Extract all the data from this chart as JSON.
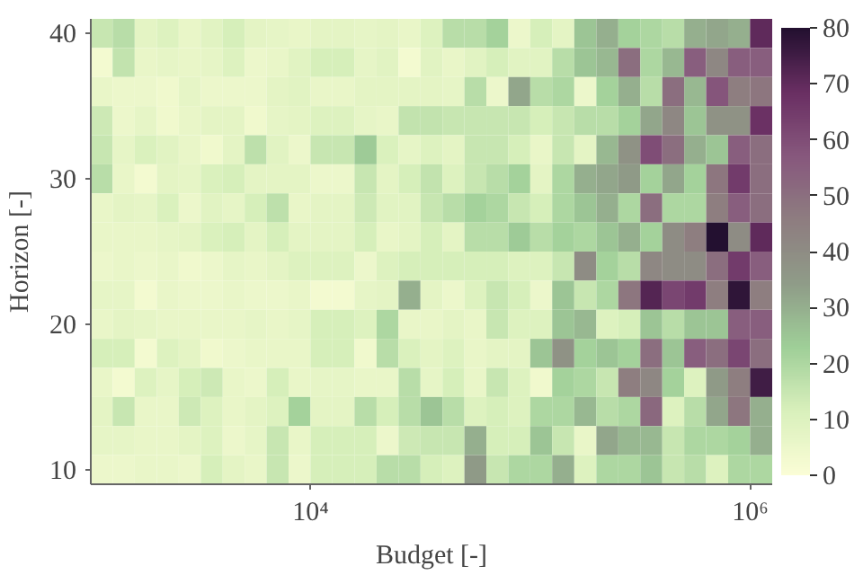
{
  "chart_data": {
    "type": "heatmap",
    "xlabel": "Budget [-]",
    "ylabel": "Horizon [-]",
    "log": "x",
    "grid": false,
    "xlim": [
      1000,
      1260000
    ],
    "xticks": [
      {
        "value": 10000,
        "label": "10⁴"
      },
      {
        "value": 1000000,
        "label": "10⁶"
      }
    ],
    "ylim": [
      9,
      41
    ],
    "yticks": [
      10,
      20,
      30,
      40
    ],
    "clim": [
      0,
      80
    ],
    "cticks": [
      0,
      10,
      20,
      30,
      40,
      50,
      60,
      70,
      80
    ],
    "colors": [
      "#fbfdd6",
      "#d9f0bc",
      "#9fcf98",
      "#8f9c88",
      "#8e7d80",
      "#87587d",
      "#6a2f63",
      "#231030"
    ],
    "x": [
      1120,
      1410,
      1780,
      2240,
      2820,
      3550,
      4470,
      5620,
      7080,
      8910,
      11200,
      14100,
      17800,
      22400,
      28200,
      35500,
      44700,
      56200,
      70800,
      89100,
      112000,
      141000,
      178000,
      224000,
      282000,
      355000,
      447000,
      562000,
      708000,
      891000,
      1120000
    ],
    "y": [
      40,
      38,
      36,
      34,
      32,
      30,
      28,
      26,
      24,
      22,
      20,
      18,
      16,
      14,
      12,
      10
    ],
    "cells": [
      [
        15,
        18,
        8,
        10,
        6,
        9,
        12,
        8,
        7,
        6,
        8,
        8,
        7,
        8,
        6,
        10,
        18,
        18,
        22,
        5,
        12,
        8,
        25,
        30,
        22,
        20,
        18,
        30,
        32,
        30,
        70
      ],
      [
        3,
        16,
        6,
        7,
        6,
        7,
        10,
        5,
        6,
        9,
        12,
        12,
        7,
        9,
        3,
        9,
        6,
        9,
        12,
        9,
        9,
        18,
        25,
        28,
        50,
        20,
        28,
        55,
        42,
        55,
        55
      ],
      [
        6,
        5,
        5,
        4,
        7,
        5,
        5,
        5,
        8,
        9,
        6,
        6,
        8,
        8,
        8,
        8,
        7,
        18,
        5,
        32,
        18,
        20,
        5,
        22,
        30,
        18,
        50,
        28,
        58,
        45,
        48
      ],
      [
        14,
        5,
        7,
        4,
        6,
        8,
        8,
        4,
        7,
        8,
        10,
        10,
        7,
        6,
        16,
        16,
        15,
        15,
        15,
        15,
        12,
        15,
        18,
        18,
        22,
        32,
        42,
        25,
        38,
        38,
        68
      ],
      [
        15,
        7,
        11,
        9,
        6,
        4,
        8,
        17,
        9,
        5,
        15,
        15,
        24,
        11,
        7,
        10,
        8,
        15,
        15,
        12,
        6,
        15,
        8,
        28,
        38,
        60,
        50,
        30,
        25,
        55,
        50
      ],
      [
        18,
        6,
        3,
        8,
        7,
        11,
        12,
        8,
        8,
        8,
        5,
        5,
        15,
        8,
        12,
        16,
        10,
        15,
        18,
        22,
        8,
        20,
        30,
        32,
        35,
        22,
        32,
        22,
        48,
        65,
        50
      ],
      [
        6,
        8,
        7,
        11,
        5,
        9,
        7,
        12,
        17,
        6,
        8,
        8,
        14,
        9,
        9,
        15,
        18,
        22,
        20,
        15,
        12,
        20,
        25,
        30,
        20,
        50,
        20,
        20,
        45,
        55,
        50
      ],
      [
        6,
        6,
        6,
        7,
        8,
        11,
        12,
        8,
        12,
        8,
        8,
        8,
        12,
        6,
        8,
        12,
        8,
        18,
        18,
        24,
        18,
        22,
        20,
        25,
        30,
        22,
        40,
        45,
        80,
        40,
        70
      ],
      [
        5,
        6,
        5,
        6,
        4,
        5,
        7,
        6,
        8,
        10,
        10,
        10,
        5,
        10,
        12,
        12,
        12,
        12,
        12,
        10,
        10,
        15,
        40,
        22,
        18,
        42,
        40,
        40,
        50,
        65,
        55
      ],
      [
        7,
        7,
        3,
        6,
        5,
        5,
        6,
        5,
        5,
        6,
        3,
        3,
        7,
        8,
        30,
        8,
        5,
        10,
        15,
        12,
        5,
        25,
        15,
        20,
        48,
        72,
        62,
        65,
        45,
        78,
        45
      ],
      [
        6,
        8,
        7,
        6,
        6,
        6,
        6,
        7,
        6,
        7,
        12,
        12,
        10,
        20,
        6,
        6,
        8,
        6,
        15,
        10,
        10,
        25,
        28,
        10,
        12,
        25,
        18,
        25,
        25,
        55,
        55
      ],
      [
        12,
        12,
        3,
        10,
        8,
        4,
        5,
        6,
        6,
        6,
        12,
        12,
        4,
        18,
        11,
        8,
        10,
        6,
        8,
        8,
        25,
        38,
        22,
        25,
        22,
        50,
        25,
        55,
        50,
        62,
        50
      ],
      [
        6,
        3,
        10,
        7,
        12,
        14,
        6,
        5,
        12,
        6,
        7,
        7,
        6,
        6,
        18,
        7,
        12,
        6,
        15,
        10,
        4,
        22,
        20,
        15,
        45,
        42,
        22,
        10,
        35,
        45,
        75
      ],
      [
        8,
        15,
        6,
        6,
        14,
        10,
        6,
        8,
        10,
        22,
        8,
        8,
        18,
        12,
        18,
        25,
        18,
        10,
        12,
        10,
        20,
        20,
        28,
        18,
        20,
        52,
        10,
        18,
        32,
        48,
        30
      ],
      [
        7,
        7,
        6,
        6,
        8,
        10,
        5,
        7,
        15,
        6,
        12,
        12,
        12,
        5,
        14,
        15,
        15,
        30,
        12,
        12,
        25,
        15,
        6,
        32,
        28,
        28,
        15,
        20,
        20,
        22,
        30
      ],
      [
        5,
        5,
        6,
        6,
        5,
        12,
        8,
        6,
        15,
        5,
        12,
        12,
        12,
        18,
        18,
        12,
        10,
        35,
        15,
        20,
        20,
        30,
        10,
        20,
        20,
        25,
        15,
        18,
        10,
        20,
        20
      ]
    ]
  }
}
